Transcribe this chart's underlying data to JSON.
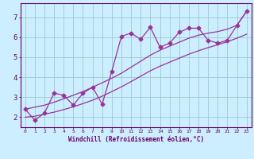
{
  "title": "",
  "xlabel": "Windchill (Refroidissement éolien,°C)",
  "ylabel": "",
  "bg_color": "#cceeff",
  "line_color": "#993399",
  "grid_color": "#99cccc",
  "axis_color": "#660066",
  "text_color": "#660066",
  "xlim": [
    -0.5,
    23.5
  ],
  "ylim": [
    1.5,
    7.7
  ],
  "xticks": [
    0,
    1,
    2,
    3,
    4,
    5,
    6,
    7,
    8,
    9,
    10,
    11,
    12,
    13,
    14,
    15,
    16,
    17,
    18,
    19,
    20,
    21,
    22,
    23
  ],
  "yticks": [
    2,
    3,
    4,
    5,
    6,
    7
  ],
  "x_data": [
    0,
    1,
    2,
    3,
    4,
    5,
    6,
    7,
    8,
    9,
    10,
    11,
    12,
    13,
    14,
    15,
    16,
    17,
    18,
    19,
    20,
    21,
    22,
    23
  ],
  "y_zigzag": [
    2.4,
    1.85,
    2.2,
    3.2,
    3.1,
    2.6,
    3.2,
    3.5,
    2.65,
    4.3,
    6.05,
    6.2,
    5.9,
    6.5,
    5.5,
    5.7,
    6.25,
    6.45,
    6.45,
    5.85,
    5.7,
    5.85,
    6.6,
    7.3
  ],
  "y_trend1": [
    2.0,
    2.05,
    2.15,
    2.25,
    2.38,
    2.52,
    2.68,
    2.85,
    3.05,
    3.28,
    3.52,
    3.78,
    4.05,
    4.32,
    4.55,
    4.75,
    4.95,
    5.15,
    5.32,
    5.48,
    5.62,
    5.78,
    5.95,
    6.15
  ],
  "y_trend2": [
    2.4,
    2.5,
    2.6,
    2.75,
    2.92,
    3.1,
    3.28,
    3.5,
    3.72,
    3.95,
    4.2,
    4.5,
    4.8,
    5.1,
    5.35,
    5.55,
    5.75,
    5.95,
    6.1,
    6.2,
    6.28,
    6.4,
    6.6,
    7.3
  ],
  "marker": "D",
  "markersize": 2.5,
  "linewidth": 0.9
}
